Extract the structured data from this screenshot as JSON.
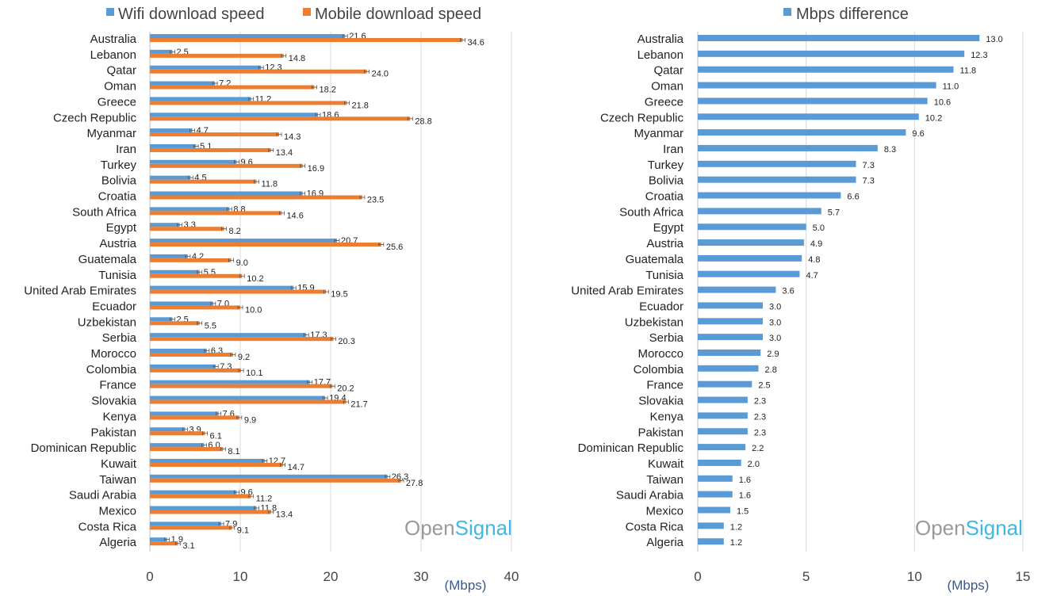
{
  "colors": {
    "wifi": "#5b9bd5",
    "mobile": "#ed7d31",
    "diff": "#5b9bd5",
    "logo_open": "#9a9a9a",
    "logo_signal": "#3fb8e4"
  },
  "logo": {
    "open": "Open",
    "signal": "Signal"
  },
  "chart_data": [
    {
      "type": "bar",
      "orientation": "horizontal",
      "legend": {
        "placement": "top",
        "entries": [
          "Wifi download speed",
          "Mobile download speed"
        ]
      },
      "xlabel": "(Mbps)",
      "xlim": [
        0,
        40
      ],
      "xticks": [
        "0",
        "10",
        "20",
        "30",
        "40"
      ],
      "grid": true,
      "categories": [
        "Australia",
        "Lebanon",
        "Qatar",
        "Oman",
        "Greece",
        "Czech Republic",
        "Myanmar",
        "Iran",
        "Turkey",
        "Bolivia",
        "Croatia",
        "South Africa",
        "Egypt",
        "Austria",
        "Guatemala",
        "Tunisia",
        "United Arab Emirates",
        "Ecuador",
        "Uzbekistan",
        "Serbia",
        "Morocco",
        "Colombia",
        "France",
        "Slovakia",
        "Kenya",
        "Pakistan",
        "Dominican Republic",
        "Kuwait",
        "Taiwan",
        "Saudi Arabia",
        "Mexico",
        "Costa Rica",
        "Algeria"
      ],
      "series": [
        {
          "name": "Wifi download speed",
          "values": [
            21.6,
            2.5,
            12.3,
            7.2,
            11.2,
            18.6,
            4.7,
            5.1,
            9.6,
            4.5,
            16.9,
            8.8,
            3.3,
            20.7,
            4.2,
            5.5,
            15.9,
            7.0,
            2.5,
            17.3,
            6.3,
            7.3,
            17.7,
            19.4,
            7.6,
            3.9,
            6.0,
            12.7,
            26.3,
            9.6,
            11.8,
            7.9,
            1.9
          ],
          "labels": [
            "21.6",
            "2.5",
            "12.3",
            "7.2",
            "11.2",
            "18.6",
            "4.7",
            "5.1",
            "9.6",
            "4.5",
            "16.9",
            "8.8",
            "3.3",
            "20.7",
            "4.2",
            "5.5",
            "15.9",
            "7.0",
            "2.5",
            "17.3",
            "6.3",
            "7.3",
            "17.7",
            "19.4",
            "7.6",
            "3.9",
            "6.0",
            "12.7",
            "26.3",
            "9.6",
            "11.8",
            "7.9",
            "1.9"
          ]
        },
        {
          "name": "Mobile download speed",
          "values": [
            34.6,
            14.8,
            24.0,
            18.2,
            21.8,
            28.8,
            14.3,
            13.4,
            16.9,
            11.8,
            23.5,
            14.6,
            8.2,
            25.6,
            9.0,
            10.2,
            19.5,
            10.0,
            5.5,
            20.3,
            9.2,
            10.1,
            20.2,
            21.7,
            9.9,
            6.1,
            8.1,
            14.7,
            27.8,
            11.2,
            13.4,
            9.1,
            3.1
          ],
          "labels": [
            "34.6",
            "14.8",
            "24.0",
            "18.2",
            "21.8",
            "28.8",
            "14.3",
            "13.4",
            "16.9",
            "11.8",
            "23.5",
            "14.6",
            "8.2",
            "25.6",
            "9.0",
            "10.2",
            "19.5",
            "10.0",
            "5.5",
            "20.3",
            "9.2",
            "10.1",
            "20.2",
            "21.7",
            "9.9",
            "6.1",
            "8.1",
            "14.7",
            "27.8",
            "11.2",
            "13.4",
            "9.1",
            "3.1"
          ]
        }
      ]
    },
    {
      "type": "bar",
      "orientation": "horizontal",
      "legend": {
        "placement": "top",
        "entries": [
          "Mbps difference"
        ]
      },
      "xlabel": "(Mbps)",
      "xlim": [
        0,
        15
      ],
      "xticks": [
        "0",
        "5",
        "10",
        "15"
      ],
      "grid": true,
      "categories": [
        "Australia",
        "Lebanon",
        "Qatar",
        "Oman",
        "Greece",
        "Czech Republic",
        "Myanmar",
        "Iran",
        "Turkey",
        "Bolivia",
        "Croatia",
        "South Africa",
        "Egypt",
        "Austria",
        "Guatemala",
        "Tunisia",
        "United Arab Emirates",
        "Ecuador",
        "Uzbekistan",
        "Serbia",
        "Morocco",
        "Colombia",
        "France",
        "Slovakia",
        "Kenya",
        "Pakistan",
        "Dominican Republic",
        "Kuwait",
        "Taiwan",
        "Saudi Arabia",
        "Mexico",
        "Costa Rica",
        "Algeria"
      ],
      "series": [
        {
          "name": "Mbps difference",
          "values": [
            13.0,
            12.3,
            11.8,
            11.0,
            10.6,
            10.2,
            9.6,
            8.3,
            7.3,
            7.3,
            6.6,
            5.7,
            5.0,
            4.9,
            4.8,
            4.7,
            3.6,
            3.0,
            3.0,
            3.0,
            2.9,
            2.8,
            2.5,
            2.3,
            2.3,
            2.3,
            2.2,
            2.0,
            1.6,
            1.6,
            1.5,
            1.2,
            1.2
          ],
          "labels": [
            "13.0",
            "12.3",
            "11.8",
            "11.0",
            "10.6",
            "10.2",
            "9.6",
            "8.3",
            "7.3",
            "7.3",
            "6.6",
            "5.7",
            "5.0",
            "4.9",
            "4.8",
            "4.7",
            "3.6",
            "3.0",
            "3.0",
            "3.0",
            "2.9",
            "2.8",
            "2.5",
            "2.3",
            "2.3",
            "2.3",
            "2.2",
            "2.0",
            "1.6",
            "1.6",
            "1.5",
            "1.2",
            "1.2"
          ]
        }
      ]
    }
  ]
}
